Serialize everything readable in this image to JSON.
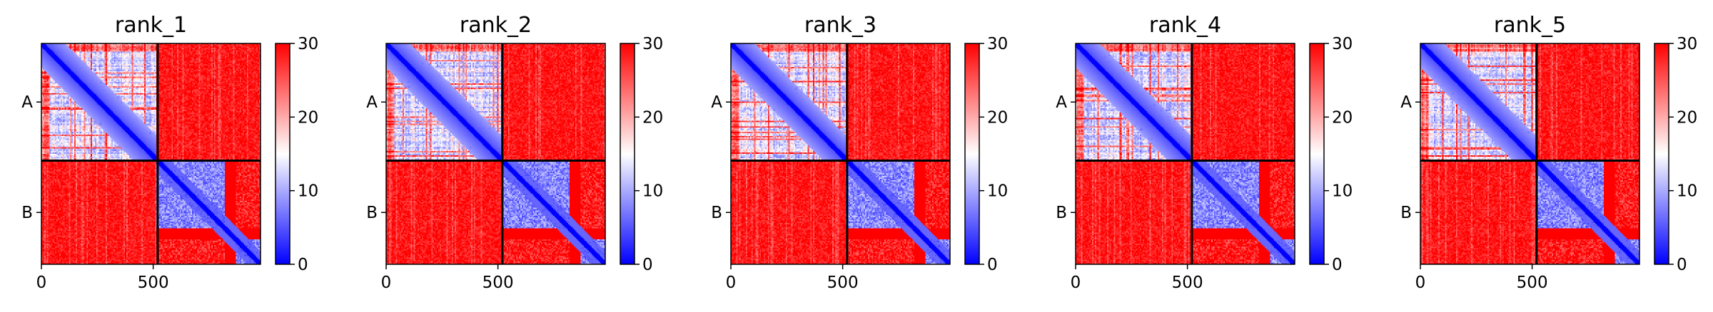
{
  "chart_data": [
    {
      "type": "heatmap",
      "title": "rank_1",
      "xticks": [
        0,
        500
      ],
      "yticklabels": [
        "A",
        "B"
      ],
      "chain_boundary": 520,
      "x_range": [
        0,
        980
      ],
      "colorbar": {
        "ticks": [
          0,
          10,
          20,
          30
        ],
        "range": [
          0,
          30
        ],
        "colormap": "bwr"
      },
      "variant": 0
    },
    {
      "type": "heatmap",
      "title": "rank_2",
      "xticks": [
        0,
        500
      ],
      "yticklabels": [
        "A",
        "B"
      ],
      "chain_boundary": 520,
      "x_range": [
        0,
        980
      ],
      "colorbar": {
        "ticks": [
          0,
          10,
          20,
          30
        ],
        "range": [
          0,
          30
        ],
        "colormap": "bwr"
      },
      "variant": 1
    },
    {
      "type": "heatmap",
      "title": "rank_3",
      "xticks": [
        0,
        500
      ],
      "yticklabels": [
        "A",
        "B"
      ],
      "chain_boundary": 520,
      "x_range": [
        0,
        980
      ],
      "colorbar": {
        "ticks": [
          0,
          10,
          20,
          30
        ],
        "range": [
          0,
          30
        ],
        "colormap": "bwr"
      },
      "variant": 2
    },
    {
      "type": "heatmap",
      "title": "rank_4",
      "xticks": [
        0,
        500
      ],
      "yticklabels": [
        "A",
        "B"
      ],
      "chain_boundary": 520,
      "x_range": [
        0,
        980
      ],
      "colorbar": {
        "ticks": [
          0,
          10,
          20,
          30
        ],
        "range": [
          0,
          30
        ],
        "colormap": "bwr"
      },
      "variant": 3
    },
    {
      "type": "heatmap",
      "title": "rank_5",
      "xticks": [
        0,
        500
      ],
      "yticklabels": [
        "A",
        "B"
      ],
      "chain_boundary": 520,
      "x_range": [
        0,
        980
      ],
      "colorbar": {
        "ticks": [
          0,
          10,
          20,
          30
        ],
        "range": [
          0,
          30
        ],
        "colormap": "bwr"
      },
      "variant": 4
    }
  ]
}
